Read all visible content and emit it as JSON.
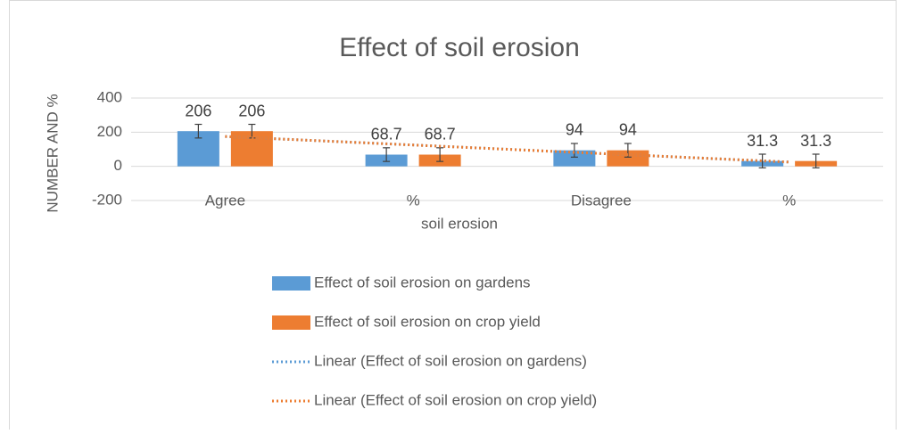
{
  "chart_data": {
    "type": "bar",
    "title": "Effect of soil erosion",
    "x_label": "soil erosion",
    "y_label": "NUMBER AND %",
    "categories": [
      "Agree",
      "%",
      "Disagree",
      "%"
    ],
    "series": [
      {
        "name": "Effect of soil erosion on gardens",
        "color": "#5b9bd5",
        "values": [
          206,
          68.7,
          94,
          31.3
        ],
        "errors": [
          40,
          40,
          40,
          40
        ]
      },
      {
        "name": "Effect of soil erosion on crop yield",
        "color": "#ed7d31",
        "values": [
          206,
          68.7,
          94,
          31.3
        ],
        "errors": [
          40,
          40,
          40,
          40
        ]
      }
    ],
    "trendlines": [
      {
        "name": "Linear (Effect of soil erosion on gardens)",
        "color": "#5b9bd5",
        "series": 0
      },
      {
        "name": "Linear (Effect of soil erosion on crop yield)",
        "color": "#ed7d31",
        "series": 1
      }
    ],
    "ylim": [
      -200,
      400
    ],
    "yticks": [
      -200,
      0,
      200,
      400
    ],
    "grid": true,
    "legend": "bottom"
  }
}
